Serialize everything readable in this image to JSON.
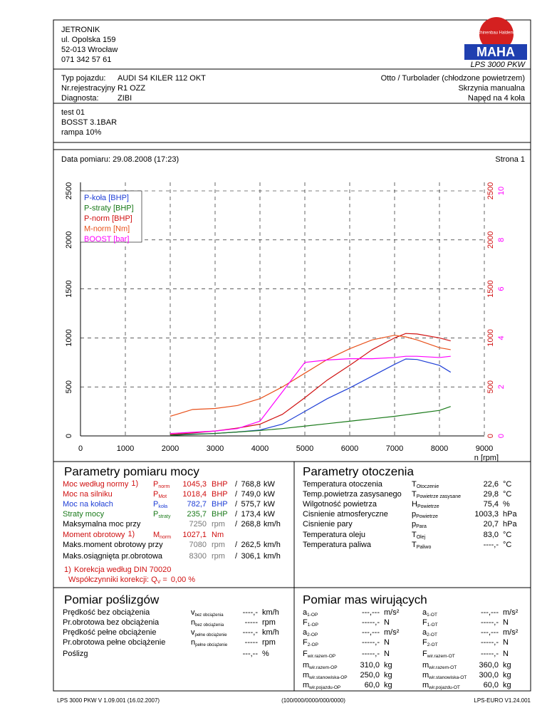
{
  "header": {
    "company": [
      "JETRONIK",
      "ul. Opolska 159",
      "52-013 Wrocław",
      "071 342 57 61"
    ],
    "logo": "MAHA",
    "logo_arc": "Maschinenbau Haldenwang",
    "product": "LPS 3000 PKW"
  },
  "vehicle": {
    "left": [
      {
        "label": "Typ pojazdu:",
        "value": "AUDI S4 KILER 112 OKT"
      },
      {
        "label": "Nr.rejestracyjny",
        "value": "R1 OZZ"
      },
      {
        "label": "Diagnosta:",
        "value": "ZIBI"
      }
    ],
    "right": [
      "Otto / Turbolader (chłodzone powietrzem)",
      "Skrzynia manualna",
      "Napęd na 4 koła"
    ]
  },
  "notes": [
    "test 01",
    "BOSST 3.1BAR",
    "rampa 10%"
  ],
  "date": "Data pomiaru: 29.08.2008 (17:23)",
  "page": "Strona 1",
  "chart_data": {
    "type": "line",
    "x": [
      2000,
      2500,
      3000,
      3500,
      4000,
      4500,
      5000,
      5500,
      6000,
      6500,
      7000,
      7250,
      7500,
      8000,
      8250
    ],
    "series": [
      {
        "name": "P-koła [BHP]",
        "color": "#1f3fd6",
        "values": [
          10,
          18,
          25,
          40,
          60,
          120,
          250,
          380,
          490,
          610,
          730,
          785,
          780,
          720,
          650
        ]
      },
      {
        "name": "P-straty [BHP]",
        "color": "#1a7a1a",
        "values": [
          5,
          15,
          25,
          40,
          55,
          75,
          100,
          125,
          150,
          175,
          200,
          215,
          230,
          260,
          300
        ]
      },
      {
        "name": "P-norm [BHP]",
        "color": "#d01010",
        "values": [
          15,
          30,
          50,
          80,
          120,
          220,
          390,
          570,
          720,
          880,
          1000,
          1045,
          1040,
          1000,
          970
        ]
      },
      {
        "name": "M-norm [Nm]",
        "color": "#e8501a",
        "values": [
          200,
          270,
          280,
          310,
          380,
          500,
          640,
          780,
          890,
          980,
          1027,
          1010,
          980,
          900,
          880
        ]
      },
      {
        "name": "BOOST [bar]",
        "color": "#ff00ff",
        "axis": "y2",
        "values": [
          0.1,
          0.15,
          0.2,
          0.3,
          0.6,
          1.8,
          3.0,
          3.1,
          3.15,
          3.15,
          3.2,
          3.25,
          3.25,
          3.2,
          3.25
        ]
      }
    ],
    "xlim": [
      0,
      9000
    ],
    "xticks": [
      0,
      1000,
      2000,
      3000,
      4000,
      5000,
      6000,
      7000,
      8000,
      9000
    ],
    "xlabel": "n [rpm]",
    "ylim": [
      0,
      2500
    ],
    "yticks": [
      0,
      500,
      1000,
      1500,
      2000,
      2500
    ],
    "y2lim": [
      0,
      10
    ],
    "y2ticks": [
      0,
      2,
      4,
      6,
      8,
      10
    ],
    "grid": true
  },
  "power": {
    "title": "Parametry pomiaru mocy",
    "rows": [
      {
        "label": "Moc według normy",
        "note": "1)",
        "sym": "P",
        "sub": "norm",
        "v1": "1045,3",
        "u1": "BHP",
        "sep": "/",
        "v2": "768,8",
        "u2": "kW",
        "color": "#d01010"
      },
      {
        "label": "Moc na silniku",
        "sym": "P",
        "sub": "Mot",
        "v1": "1018,4",
        "u1": "BHP",
        "sep": "/",
        "v2": "749,0",
        "u2": "kW",
        "color": "#d01010"
      },
      {
        "label": "Moc na kołach",
        "sym": "P",
        "sub": "koła",
        "v1": "782,7",
        "u1": "BHP",
        "sep": "/",
        "v2": "575,7",
        "u2": "kW",
        "color": "#1f3fd6"
      },
      {
        "label": "Straty mocy",
        "sym": "P",
        "sub": "straty",
        "v1": "235,7",
        "u1": "BHP",
        "sep": "/",
        "v2": "173,4",
        "u2": "kW",
        "color": "#1a7a1a"
      },
      {
        "label": "Maksymalna moc przy",
        "v1": "7250",
        "u1": "rpm",
        "sep": "/",
        "v2": "268,8",
        "u2": "km/h"
      },
      {
        "label": "Moment obrotowy",
        "note": "1)",
        "sym": "M",
        "sub": "norm",
        "v1": "1027,1",
        "u1": "Nm",
        "color": "#d01010"
      },
      {
        "label": "Maks.moment obrotowy przy",
        "v1": "7080",
        "u1": "rpm",
        "sep": "/",
        "v2": "262,5",
        "u2": "km/h"
      },
      {
        "label": "Maks.osiągnięta pr.obrotowa",
        "v1": "8300",
        "u1": "rpm",
        "sep": "/",
        "v2": "306,1",
        "u2": "km/h"
      }
    ],
    "footnote": {
      "mark": "1)",
      "text": "Korekcja według DIN 70020",
      "factor_label": "Współczynniki korekcji: Q",
      "factor_sub": "V",
      "factor_eq": "=",
      "factor_value": "0,00 %"
    }
  },
  "environment": {
    "title": "Parametry otoczenia",
    "rows": [
      {
        "label": "Temperatura otoczenia",
        "sym": "T",
        "sub": "Otoczenie",
        "value": "22,6",
        "unit": "°C"
      },
      {
        "label": "Temp.powietrza zasysanego",
        "sym": "T",
        "sub": "Powietrze zasysane",
        "value": "29,8",
        "unit": "°C"
      },
      {
        "label": "Wilgotność powietrza",
        "sym": "H",
        "sub": "Powietrze",
        "value": "75,4",
        "unit": "%"
      },
      {
        "label": "Cisnienie atmosferyczne",
        "sym": "p",
        "sub": "Powietrze",
        "value": "1003,3",
        "unit": "hPa"
      },
      {
        "label": "Cisnienie pary",
        "sym": "p",
        "sub": "Para",
        "value": "20,7",
        "unit": "hPa"
      },
      {
        "label": "Temperatura oleju",
        "sym": "T",
        "sub": "Olej",
        "value": "83,0",
        "unit": "°C"
      },
      {
        "label": "Temperatura paliwa",
        "sym": "T",
        "sub": "Paliwo",
        "value": "----,-",
        "unit": "°C"
      }
    ]
  },
  "slip": {
    "title": "Pomiar poślizgów",
    "rows": [
      {
        "label": "Prędkość bez obciążenia",
        "sym": "v",
        "sub": "bez obciążenia",
        "value": "----,-",
        "unit": "km/h"
      },
      {
        "label": "Pr.obrotowa bez obciążenia",
        "sym": "n",
        "sub": "bez obciążenia",
        "value": "-----",
        "unit": "rpm"
      },
      {
        "label": "Prędkość pełne obciążenie",
        "sym": "v",
        "sub": "pełne obciążenie",
        "value": "----,-",
        "unit": "km/h"
      },
      {
        "label": "Pr.obrotowa pełne obciążenie",
        "sym": "n",
        "sub": "pełne obciążenie",
        "value": "-----",
        "unit": "rpm"
      },
      {
        "label": "Poślizg",
        "value": "---,--",
        "unit": "%"
      }
    ]
  },
  "mass": {
    "title": "Pomiar mas wirujących",
    "left": [
      {
        "sym": "a",
        "sub": "1-OP",
        "value": "---,---",
        "unit": "m/s²"
      },
      {
        "sym": "F",
        "sub": "1-OP",
        "value": "-----,-",
        "unit": "N"
      },
      {
        "sym": "a",
        "sub": "2-OP",
        "value": "---,---",
        "unit": "m/s²"
      },
      {
        "sym": "F",
        "sub": "2-OP",
        "value": "-----,-",
        "unit": "N"
      },
      {
        "sym": "F",
        "sub": "wir.razem-OP",
        "value": "-----,-",
        "unit": "N"
      },
      {
        "sym": "m",
        "sub": "wir.razem-OP",
        "value": "310,0",
        "unit": "kg"
      },
      {
        "sym": "m",
        "sub": "wir.stanowiska-OP",
        "value": "250,0",
        "unit": "kg"
      },
      {
        "sym": "m",
        "sub": "wir.pojazdu-OP",
        "value": "60,0",
        "unit": "kg"
      }
    ],
    "right": [
      {
        "sym": "a",
        "sub": "1-OT",
        "value": "---,---",
        "unit": "m/s²"
      },
      {
        "sym": "F",
        "sub": "1-OT",
        "value": "-----,-",
        "unit": "N"
      },
      {
        "sym": "a",
        "sub": "2-OT",
        "value": "---,---",
        "unit": "m/s²"
      },
      {
        "sym": "F",
        "sub": "2-OT",
        "value": "-----,-",
        "unit": "N"
      },
      {
        "sym": "F",
        "sub": "wir.razem-OT",
        "value": "-----,-",
        "unit": "N"
      },
      {
        "sym": "m",
        "sub": "wir.razem-OT",
        "value": "360,0",
        "unit": "kg"
      },
      {
        "sym": "m",
        "sub": "wir.stanowiska-OT",
        "value": "300,0",
        "unit": "kg"
      },
      {
        "sym": "m",
        "sub": "wir.pojazdu-OT",
        "value": "60,0",
        "unit": "kg"
      }
    ]
  },
  "footer": {
    "left": "LPS 3000 PKW V 1.09.001 (16.02.2007)",
    "center": "(100/000/0000/000/0000)",
    "right": "LPS-EURO V1.24.001"
  }
}
